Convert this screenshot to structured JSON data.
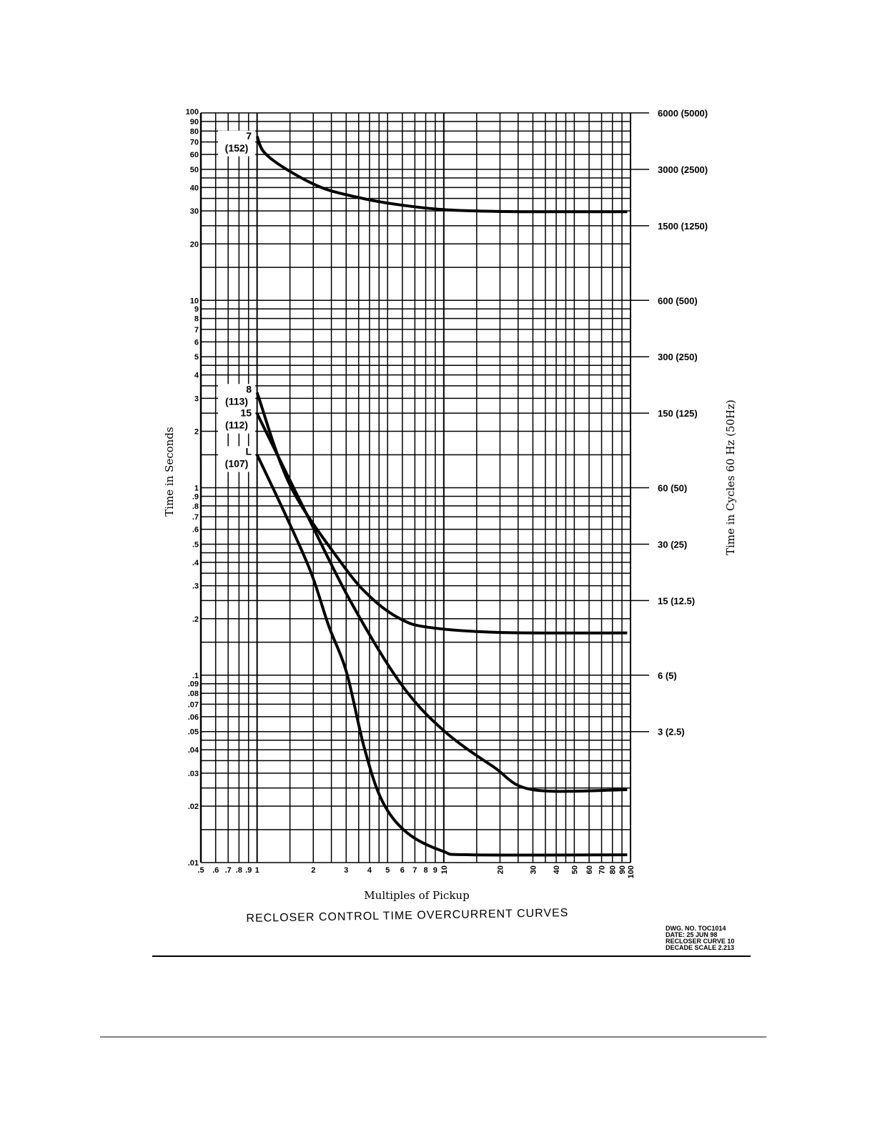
{
  "chart_data": {
    "type": "line",
    "title": "RECLOSER CONTROL TIME OVERCURRENT CURVES",
    "xlabel": "Multiples of Pickup",
    "ylabel": "Time in Seconds",
    "ylabel_right": "Time in Cycles 60 Hz (50Hz)",
    "xscale": "log",
    "yscale": "log",
    "xlim": [
      0.5,
      100
    ],
    "ylim": [
      0.01,
      100
    ],
    "grid": true,
    "x_ticks": [
      ".5",
      ".6",
      ".7",
      ".8",
      ".9",
      "1",
      "2",
      "3",
      "4",
      "5",
      "6",
      "7",
      "8",
      "9",
      "10",
      "20",
      "30",
      "40",
      "50",
      "60",
      "70",
      "80",
      "90",
      "100"
    ],
    "x_tick_values": [
      0.5,
      0.6,
      0.7,
      0.8,
      0.9,
      1,
      2,
      3,
      4,
      5,
      6,
      7,
      8,
      9,
      10,
      20,
      30,
      40,
      50,
      60,
      70,
      80,
      90,
      100
    ],
    "y_ticks": [
      "100",
      "90",
      "80",
      "70",
      "60",
      "50",
      "40",
      "30",
      "20",
      "10",
      "9",
      "8",
      "7",
      "6",
      "5",
      "4",
      "3",
      "2",
      "1",
      ".9",
      ".8",
      ".7",
      ".6",
      ".5",
      ".4",
      ".3",
      ".2",
      ".1",
      ".09",
      ".08",
      ".07",
      ".06",
      ".05",
      ".04",
      ".03",
      ".02",
      ".01"
    ],
    "y_tick_values": [
      100,
      90,
      80,
      70,
      60,
      50,
      40,
      30,
      20,
      10,
      9,
      8,
      7,
      6,
      5,
      4,
      3,
      2,
      1,
      0.9,
      0.8,
      0.7,
      0.6,
      0.5,
      0.4,
      0.3,
      0.2,
      0.1,
      0.09,
      0.08,
      0.07,
      0.06,
      0.05,
      0.04,
      0.03,
      0.02,
      0.01
    ],
    "right_ticks": [
      {
        "label": "6000  (5000)",
        "seconds": 100
      },
      {
        "label": "3000  (2500)",
        "seconds": 50
      },
      {
        "label": "1500  (1250)",
        "seconds": 25
      },
      {
        "label": "600  (500)",
        "seconds": 10
      },
      {
        "label": "300  (250)",
        "seconds": 5
      },
      {
        "label": "150  (125)",
        "seconds": 2.5
      },
      {
        "label": "60  (50)",
        "seconds": 1
      },
      {
        "label": "30  (25)",
        "seconds": 0.5
      },
      {
        "label": "15  (12.5)",
        "seconds": 0.25
      },
      {
        "label": "6  (5)",
        "seconds": 0.1
      },
      {
        "label": "3  (2.5)",
        "seconds": 0.05
      }
    ],
    "series": [
      {
        "name": "7",
        "code": "(152)",
        "x": [
          1,
          1.09,
          1.42,
          2.21,
          3.44,
          5.34,
          9.9,
          20,
          34,
          96
        ],
        "y": [
          75,
          61.7,
          50.4,
          40,
          35.5,
          32.7,
          30.5,
          29.8,
          29.7,
          29.7
        ]
      },
      {
        "name": "8",
        "code": "(113)",
        "x": [
          1,
          1.51,
          2.88,
          4.1,
          5.84,
          8.28,
          20,
          96
        ],
        "y": [
          3.22,
          1.02,
          0.387,
          0.258,
          0.2,
          0.18,
          0.169,
          0.168
        ]
      },
      {
        "name": "15",
        "code": "(112)",
        "x": [
          1,
          1.85,
          3.15,
          5.84,
          9.9,
          18.4,
          29.8,
          96
        ],
        "y": [
          2.49,
          0.717,
          0.25,
          0.091,
          0.051,
          0.0325,
          0.0245,
          0.0245
        ]
      },
      {
        "name": "L",
        "code": "(107)",
        "x": [
          1,
          1.42,
          1.94,
          2.42,
          3.01,
          3.75,
          4.68,
          6.37,
          9.9,
          14,
          96
        ],
        "y": [
          1.5,
          0.717,
          0.355,
          0.183,
          0.104,
          0.041,
          0.0213,
          0.0144,
          0.0115,
          0.011,
          0.011
        ]
      }
    ]
  },
  "drawing_info": [
    "DWG. NO. TOC1014",
    "DATE: 25 JUN 98",
    "RECLOSER CURVE 10",
    "DECADE SCALE 2.213"
  ]
}
